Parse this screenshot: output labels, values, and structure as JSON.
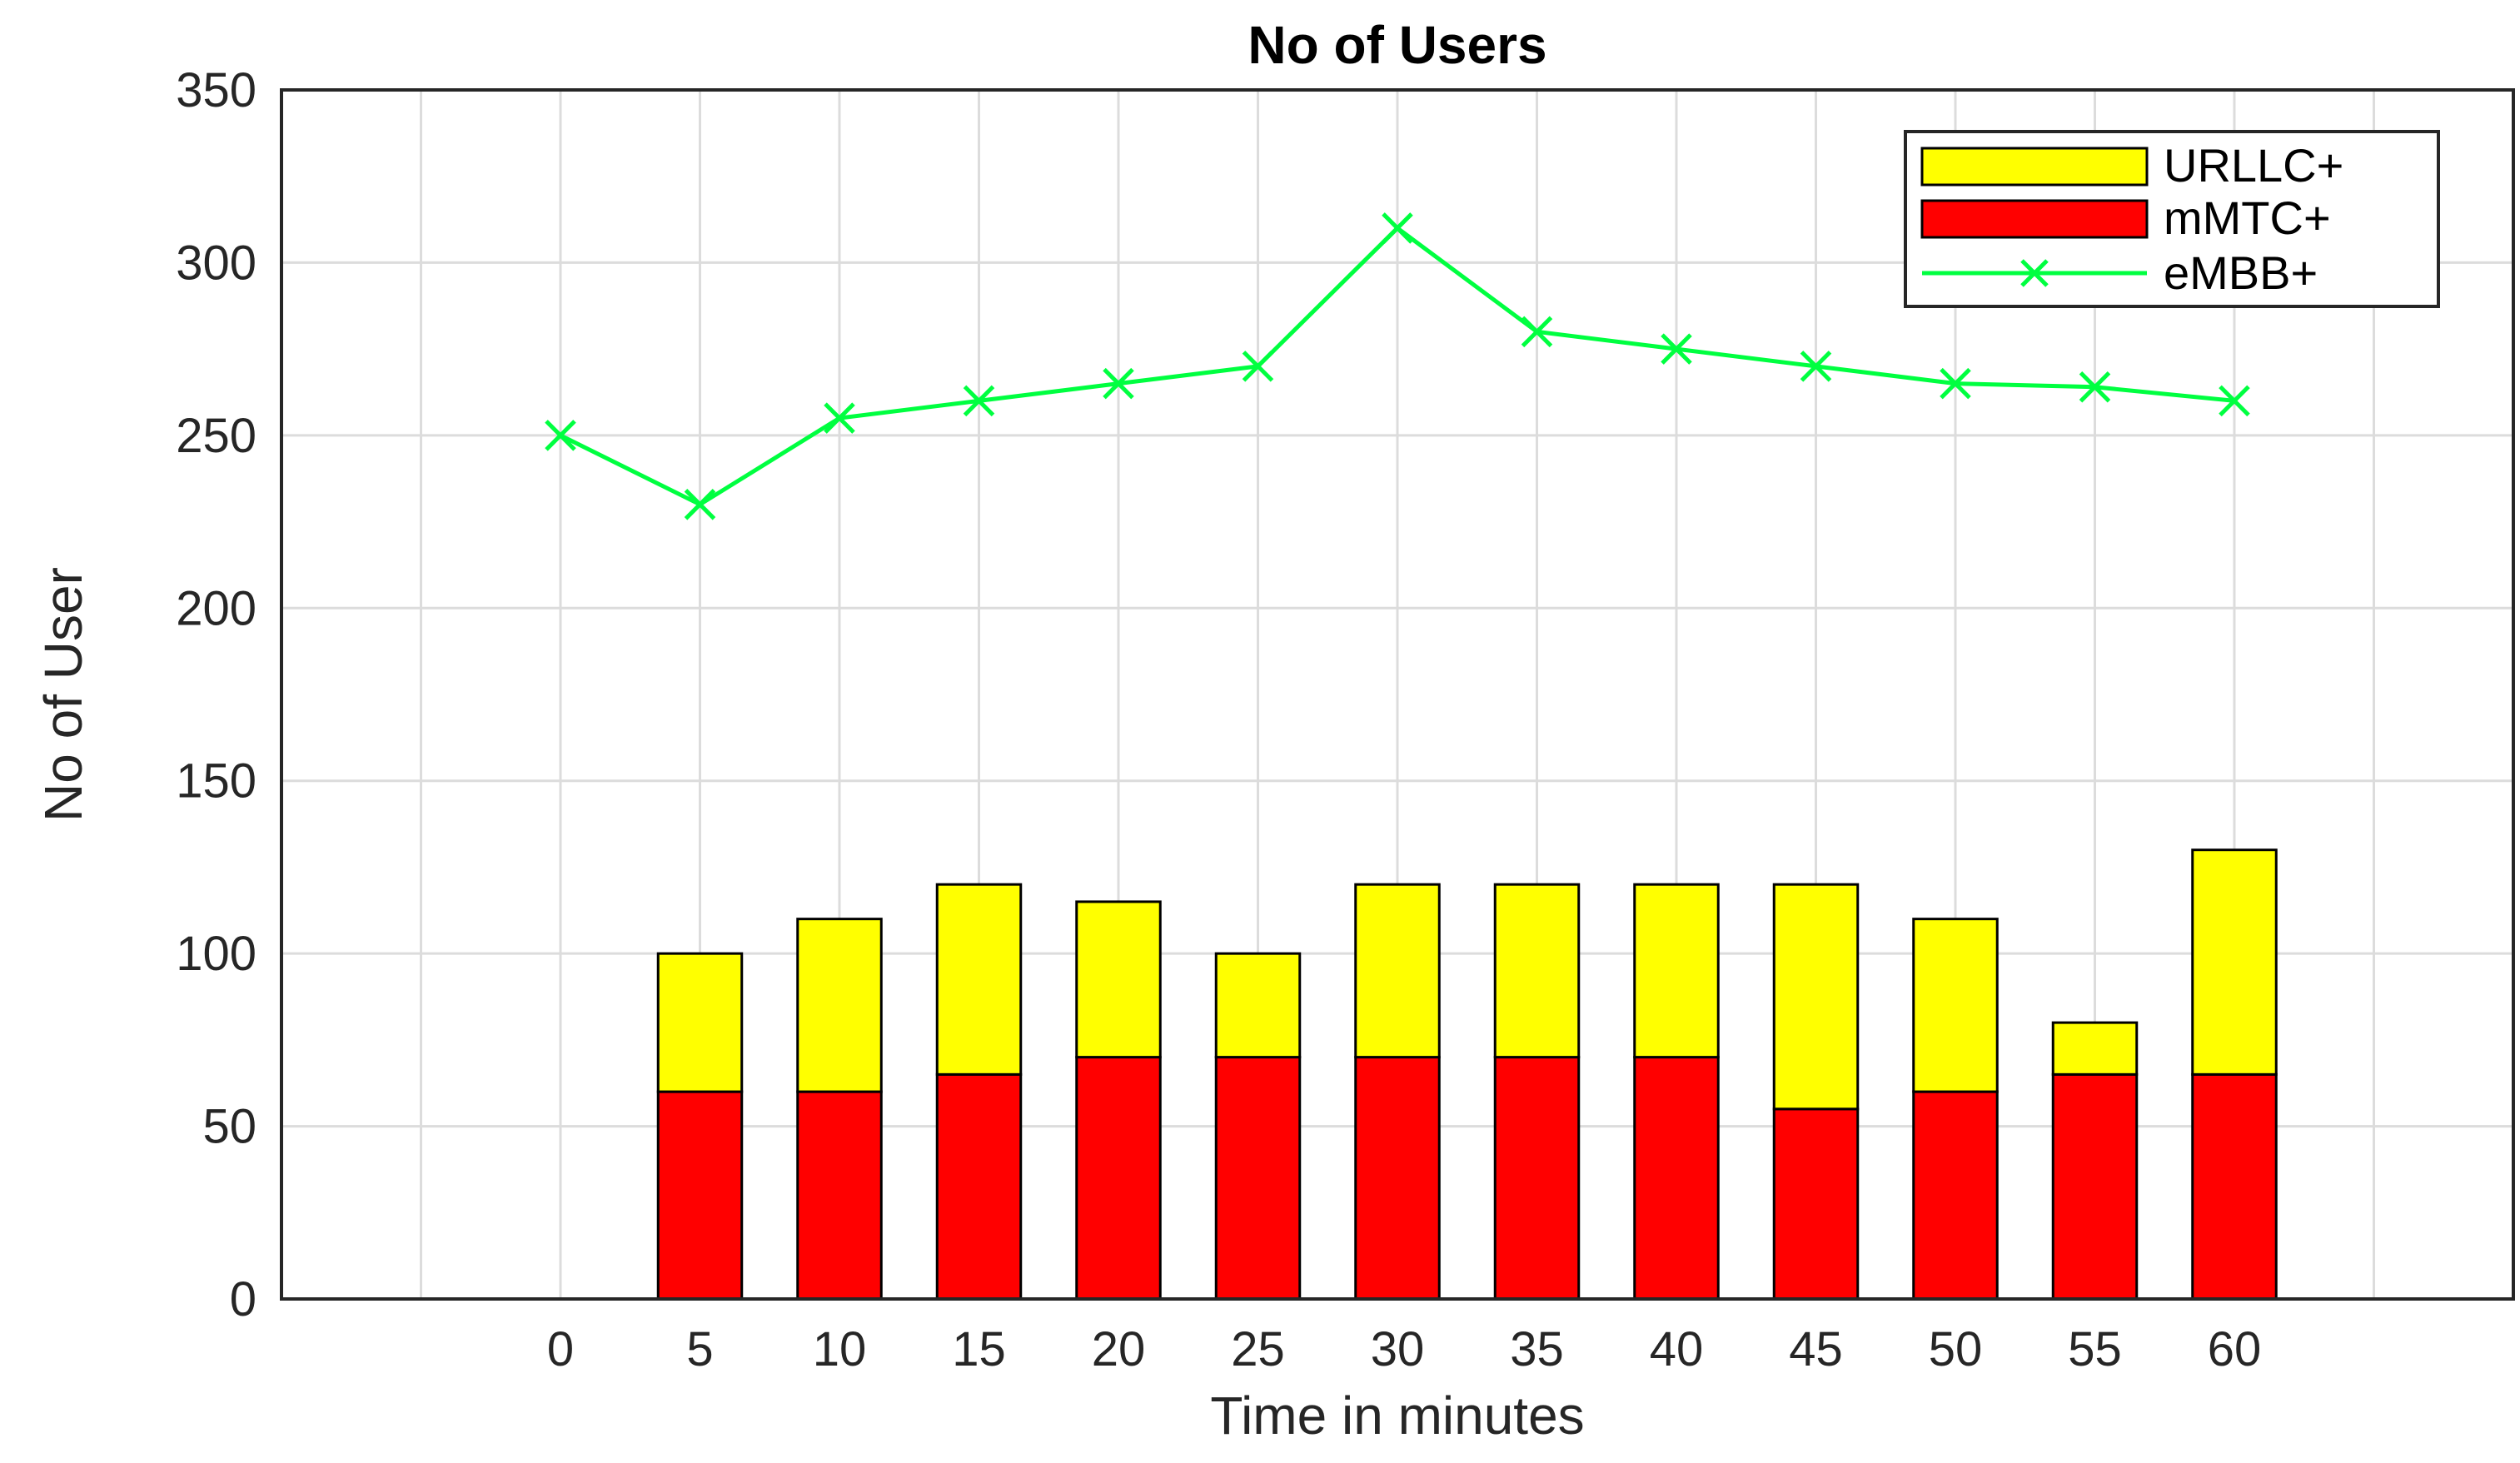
{
  "chart_data": {
    "type": "bar",
    "title": "No of Users",
    "xlabel": "Time in minutes",
    "ylabel": "No of User",
    "categories": [
      "0",
      "5",
      "10",
      "15",
      "20",
      "25",
      "30",
      "35",
      "40",
      "45",
      "50",
      "55",
      "60"
    ],
    "x": [
      0,
      5,
      10,
      15,
      20,
      25,
      30,
      35,
      40,
      45,
      50,
      55,
      60
    ],
    "ylim": [
      0,
      350
    ],
    "yticks": [
      0,
      50,
      100,
      150,
      200,
      250,
      300,
      350
    ],
    "grid": true,
    "stacked": true,
    "legend_position": "top-right",
    "series": [
      {
        "name": "mMTC+",
        "kind": "bar",
        "color": "#ff0000",
        "values": [
          0,
          60,
          60,
          65,
          70,
          70,
          70,
          70,
          70,
          55,
          60,
          65,
          65
        ]
      },
      {
        "name": "URLLC+",
        "kind": "bar",
        "color": "#ffff00",
        "values": [
          0,
          40,
          50,
          55,
          45,
          30,
          50,
          50,
          50,
          65,
          50,
          15,
          65
        ]
      },
      {
        "name": "eMBB+",
        "kind": "line",
        "marker": "x",
        "color": "#00ff40",
        "values": [
          250,
          230,
          255,
          260,
          265,
          270,
          310,
          280,
          275,
          270,
          265,
          264,
          260
        ]
      }
    ],
    "legend": [
      "URLLC+",
      "mMTC+",
      "eMBB+"
    ]
  }
}
